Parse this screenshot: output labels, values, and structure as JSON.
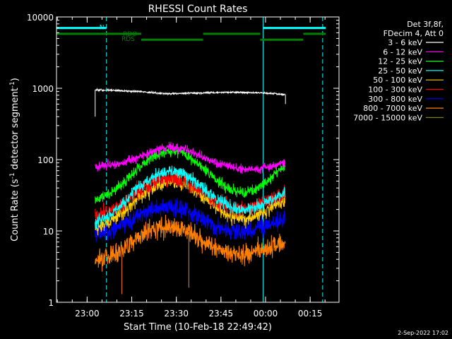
{
  "chart_data": {
    "type": "line",
    "title": "RHESSI Count Rates",
    "xlabel": "Start Time (10-Feb-18 22:49:42)",
    "ylabel_parts": [
      "Count Rate (s",
      "-1",
      " detector segment",
      "-1",
      ")"
    ],
    "date_stamp": "2-Sep-2022 17:02",
    "x_axis": {
      "unit": "minutes after 22:49:42",
      "range": [
        0,
        95
      ],
      "ticks": [
        {
          "label": "23:00",
          "x": 10.3
        },
        {
          "label": "23:15",
          "x": 25.3
        },
        {
          "label": "23:30",
          "x": 40.3
        },
        {
          "label": "23:45",
          "x": 55.3
        },
        {
          "label": "00:00",
          "x": 70.3
        },
        {
          "label": "00:15",
          "x": 85.3
        }
      ]
    },
    "y_axis": {
      "scale": "log",
      "range": [
        1,
        10000
      ],
      "ticks": [
        {
          "label": "1",
          "value": 1
        },
        {
          "label": "10",
          "value": 10
        },
        {
          "label": "100",
          "value": 100
        },
        {
          "label": "1000",
          "value": 1000
        },
        {
          "label": "10000",
          "value": 10000
        }
      ]
    },
    "legend": {
      "placement": "right",
      "header": [
        "Det 3f,8f,",
        "FDecim 4, Att 0"
      ]
    },
    "data_span": [
      13,
      77
    ],
    "series": [
      {
        "name": "3 - 6 keV",
        "color": "#ffffff",
        "x": [
          13,
          18,
          23,
          28,
          33,
          38,
          43,
          48,
          53,
          58,
          63,
          68,
          73,
          77
        ],
        "y": [
          950,
          940,
          920,
          900,
          860,
          840,
          850,
          860,
          870,
          880,
          870,
          860,
          840,
          820
        ]
      },
      {
        "name": "6 - 12 keV",
        "color": "#ff00ff",
        "x": [
          13,
          18,
          23,
          28,
          33,
          38,
          43,
          48,
          53,
          58,
          63,
          68,
          73,
          77
        ],
        "y": [
          80,
          85,
          92,
          110,
          135,
          150,
          140,
          115,
          92,
          80,
          73,
          73,
          82,
          95
        ]
      },
      {
        "name": "12 - 25 keV",
        "color": "#00ff00",
        "x": [
          13,
          18,
          23,
          28,
          33,
          38,
          43,
          48,
          53,
          58,
          63,
          68,
          73,
          77
        ],
        "y": [
          28,
          33,
          48,
          80,
          115,
          135,
          120,
          85,
          55,
          38,
          34,
          40,
          60,
          85
        ]
      },
      {
        "name": "25 - 50 keV",
        "color": "#00ffff",
        "x": [
          13,
          18,
          23,
          28,
          33,
          38,
          43,
          48,
          53,
          58,
          63,
          68,
          73,
          77
        ],
        "y": [
          13,
          17,
          26,
          42,
          60,
          70,
          62,
          45,
          30,
          22,
          20,
          22,
          28,
          35
        ]
      },
      {
        "name": "50 - 100 keV",
        "color": "#ffcc00",
        "x": [
          13,
          18,
          23,
          28,
          33,
          38,
          43,
          48,
          53,
          58,
          63,
          68,
          73,
          77
        ],
        "y": [
          11,
          13,
          19,
          30,
          42,
          50,
          45,
          33,
          22,
          16,
          15,
          17,
          22,
          28
        ]
      },
      {
        "name": "100 - 300 keV",
        "color": "#ff0000",
        "x": [
          13,
          18,
          23,
          28,
          33,
          38,
          43,
          48,
          53,
          58,
          63,
          68,
          73,
          77
        ],
        "y": [
          17,
          19,
          25,
          37,
          50,
          55,
          50,
          38,
          27,
          21,
          20,
          23,
          29,
          35
        ]
      },
      {
        "name": "300 - 800 keV",
        "color": "#0000ff",
        "x": [
          13,
          18,
          23,
          28,
          33,
          38,
          43,
          48,
          53,
          58,
          63,
          68,
          73,
          77
        ],
        "y": [
          9,
          10,
          13,
          17,
          21,
          22,
          20,
          16,
          12,
          10,
          10,
          11,
          13,
          15
        ]
      },
      {
        "name": "800 - 7000 keV",
        "color": "#ff8000",
        "x": [
          13,
          18,
          23,
          28,
          33,
          38,
          43,
          48,
          53,
          58,
          63,
          68,
          73,
          77
        ],
        "y": [
          4,
          4.5,
          6,
          8.5,
          11,
          12,
          10.5,
          8,
          5.8,
          4.8,
          4.7,
          5.2,
          6.2,
          7
        ]
      },
      {
        "name": "7000 - 15000 keV",
        "color": "#808000",
        "x": [],
        "y": []
      }
    ],
    "vertical_markers": [
      {
        "x": 0,
        "color": "#00ffff",
        "style": "solid"
      },
      {
        "x": 69.5,
        "color": "#00ffff",
        "style": "solid"
      },
      {
        "x": 16.8,
        "color": "#00ffff",
        "style": "dashed"
      },
      {
        "x": 89.5,
        "color": "#00ffff",
        "style": "dashed"
      }
    ],
    "flag_bars": [
      {
        "label": "N",
        "color": "#00ffff",
        "x_start": 0,
        "x_end": 16.8,
        "level": 7000
      },
      {
        "label": "",
        "color": "#00ffff",
        "x_start": 69.5,
        "x_end": 90.5,
        "level": 7000
      },
      {
        "label": "RDO",
        "color": "#008000",
        "x_start": 0,
        "x_end": 28.5,
        "level": 5800
      },
      {
        "label": "",
        "color": "#008000",
        "x_start": 49.3,
        "x_end": 68.5,
        "level": 5800
      },
      {
        "label": "",
        "color": "#008000",
        "x_start": 83,
        "x_end": 90.5,
        "level": 5800
      },
      {
        "label": "RDS",
        "color": "#008000",
        "x_start": 28.5,
        "x_end": 49.3,
        "level": 4800
      },
      {
        "label": "",
        "color": "#008000",
        "x_start": 68.5,
        "x_end": 83,
        "level": 4800
      }
    ]
  }
}
